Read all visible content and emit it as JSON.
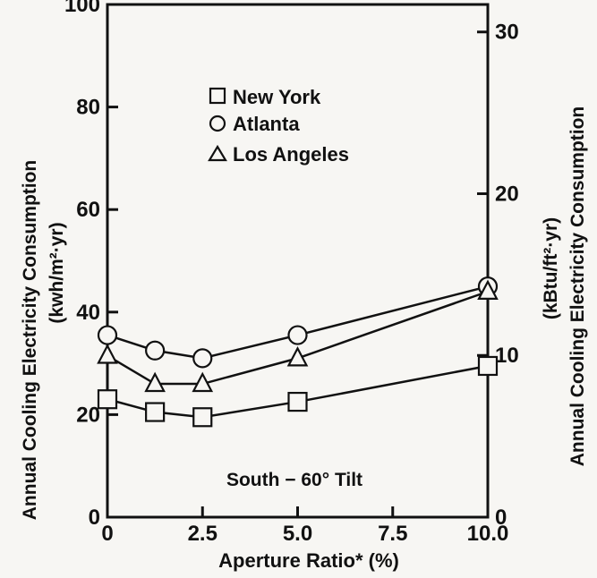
{
  "chart_data": {
    "type": "line",
    "xlabel": "Aperture Ratio* (%)",
    "ylabel_left": "Annual Cooling Electricity Consumption",
    "ylabel_left_units": "(kwh/m²·yr)",
    "ylabel_right": "Annual Cooling Electricity Consumption",
    "ylabel_right_units": "(kBtu/ft²·yr)",
    "xlim": [
      0,
      10
    ],
    "ylim": [
      0,
      100
    ],
    "ylim_right": [
      0,
      31.7
    ],
    "x_ticks": [
      0,
      2.5,
      5.0,
      7.5,
      10.0
    ],
    "x_tick_labels": [
      "0",
      "2.5",
      "5.0",
      "7.5",
      "10.0"
    ],
    "y_ticks": [
      0,
      20,
      40,
      60,
      80,
      100
    ],
    "y_tick_labels": [
      "0",
      "20",
      "40",
      "60",
      "80",
      "100"
    ],
    "y_right_ticks": [
      0,
      10,
      20,
      30
    ],
    "y_right_tick_labels": [
      "0",
      "10",
      "20",
      "30"
    ],
    "annotation": "South − 60° Tilt",
    "grid": false,
    "legend_position": "top-center",
    "series": [
      {
        "name": "New York",
        "marker": "square",
        "x": [
          0,
          1.25,
          2.5,
          5.0,
          10.0
        ],
        "y": [
          23,
          20.5,
          19.5,
          22.5,
          29.5
        ]
      },
      {
        "name": "Atlanta",
        "marker": "circle",
        "x": [
          0,
          1.25,
          2.5,
          5.0,
          10.0
        ],
        "y": [
          35.5,
          32.5,
          31,
          35.5,
          45
        ]
      },
      {
        "name": "Los Angeles",
        "marker": "triangle",
        "x": [
          0,
          1.25,
          2.5,
          5.0,
          10.0
        ],
        "y": [
          31.5,
          26,
          26,
          31,
          44
        ]
      }
    ]
  }
}
